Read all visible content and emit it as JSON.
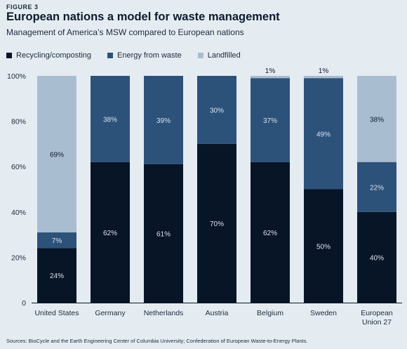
{
  "header": {
    "figure_label": "FIGURE 3",
    "title": "European nations a model for waste management",
    "subtitle": "Management of America’s MSW compared to European nations"
  },
  "sources": "Sources: BioCycle and the Earth Engineering Center of Columbia University; Confederation of European Waste-to-Energy Plants.",
  "chart_data": {
    "type": "bar",
    "stacked": true,
    "title": "European nations a model for waste management",
    "subtitle": "Management of America’s MSW compared to European nations",
    "xlabel": "",
    "ylabel": "",
    "ylim": [
      0,
      100
    ],
    "yticks": [
      "0",
      "20%",
      "40%",
      "60%",
      "80%",
      "100%"
    ],
    "ytick_values": [
      0,
      20,
      40,
      60,
      80,
      100
    ],
    "grid": false,
    "legend_position": "top-left",
    "categories": [
      [
        "United States"
      ],
      [
        "Germany"
      ],
      [
        "Netherlands"
      ],
      [
        "Austria"
      ],
      [
        "Belgium"
      ],
      [
        "Sweden"
      ],
      [
        "European",
        "Union 27"
      ]
    ],
    "series": [
      {
        "name": "Recycling/composting",
        "color": "#071527",
        "values": [
          24,
          62,
          61,
          70,
          62,
          50,
          40
        ],
        "labels": [
          "24%",
          "62%",
          "61%",
          "70%",
          "62%",
          "50%",
          "40%"
        ]
      },
      {
        "name": "Energy from waste",
        "color": "#2d527a",
        "values": [
          7,
          38,
          39,
          30,
          37,
          49,
          22
        ],
        "labels": [
          "7%",
          "38%",
          "39%",
          "30%",
          "37%",
          "49%",
          "22%"
        ]
      },
      {
        "name": "Landfilled",
        "color": "#a9bdd0",
        "values": [
          69,
          0,
          0,
          0,
          1,
          1,
          38
        ],
        "labels": [
          "69%",
          "",
          "",
          "",
          "1%",
          "1%",
          "38%"
        ]
      }
    ]
  }
}
